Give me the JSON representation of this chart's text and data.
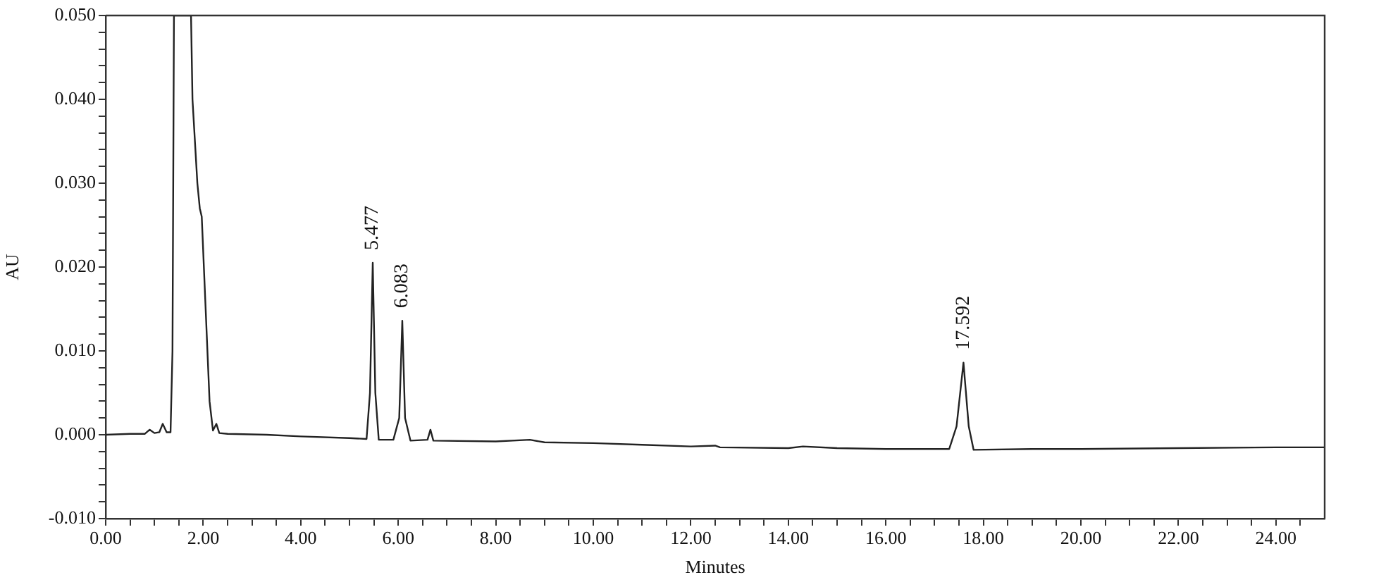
{
  "chart_data": {
    "type": "line",
    "xlabel": "Minutes",
    "ylabel": "AU",
    "xlim": [
      0,
      25
    ],
    "ylim": [
      -0.01,
      0.05
    ],
    "xticks": [
      {
        "value": 0,
        "label": "0.00"
      },
      {
        "value": 0.5,
        "label": null
      },
      {
        "value": 1,
        "label": null
      },
      {
        "value": 1.5,
        "label": null
      },
      {
        "value": 2,
        "label": "2.00"
      },
      {
        "value": 2.5,
        "label": null
      },
      {
        "value": 3,
        "label": null
      },
      {
        "value": 3.5,
        "label": null
      },
      {
        "value": 4,
        "label": "4.00"
      },
      {
        "value": 4.5,
        "label": null
      },
      {
        "value": 5,
        "label": null
      },
      {
        "value": 5.5,
        "label": null
      },
      {
        "value": 6,
        "label": "6.00"
      },
      {
        "value": 6.5,
        "label": null
      },
      {
        "value": 7,
        "label": null
      },
      {
        "value": 7.5,
        "label": null
      },
      {
        "value": 8,
        "label": "8.00"
      },
      {
        "value": 8.5,
        "label": null
      },
      {
        "value": 9,
        "label": null
      },
      {
        "value": 9.5,
        "label": null
      },
      {
        "value": 10,
        "label": "10.00"
      },
      {
        "value": 10.5,
        "label": null
      },
      {
        "value": 11,
        "label": null
      },
      {
        "value": 11.5,
        "label": null
      },
      {
        "value": 12,
        "label": "12.00"
      },
      {
        "value": 12.5,
        "label": null
      },
      {
        "value": 13,
        "label": null
      },
      {
        "value": 13.5,
        "label": null
      },
      {
        "value": 14,
        "label": "14.00"
      },
      {
        "value": 14.5,
        "label": null
      },
      {
        "value": 15,
        "label": null
      },
      {
        "value": 15.5,
        "label": null
      },
      {
        "value": 16,
        "label": "16.00"
      },
      {
        "value": 16.5,
        "label": null
      },
      {
        "value": 17,
        "label": null
      },
      {
        "value": 17.5,
        "label": null
      },
      {
        "value": 18,
        "label": "18.00"
      },
      {
        "value": 18.5,
        "label": null
      },
      {
        "value": 19,
        "label": null
      },
      {
        "value": 19.5,
        "label": null
      },
      {
        "value": 20,
        "label": "20.00"
      },
      {
        "value": 20.5,
        "label": null
      },
      {
        "value": 21,
        "label": null
      },
      {
        "value": 21.5,
        "label": null
      },
      {
        "value": 22,
        "label": "22.00"
      },
      {
        "value": 22.5,
        "label": null
      },
      {
        "value": 23,
        "label": null
      },
      {
        "value": 23.5,
        "label": null
      },
      {
        "value": 24,
        "label": "24.00"
      },
      {
        "value": 24.5,
        "label": null
      }
    ],
    "yticks": [
      {
        "value": -0.01,
        "label": "-0.010"
      },
      {
        "value": -0.008,
        "label": null
      },
      {
        "value": -0.006,
        "label": null
      },
      {
        "value": -0.004,
        "label": null
      },
      {
        "value": -0.002,
        "label": null
      },
      {
        "value": 0,
        "label": "0.000"
      },
      {
        "value": 0.002,
        "label": null
      },
      {
        "value": 0.004,
        "label": null
      },
      {
        "value": 0.006,
        "label": null
      },
      {
        "value": 0.008,
        "label": null
      },
      {
        "value": 0.01,
        "label": "0.010"
      },
      {
        "value": 0.012,
        "label": null
      },
      {
        "value": 0.014,
        "label": null
      },
      {
        "value": 0.016,
        "label": null
      },
      {
        "value": 0.018,
        "label": null
      },
      {
        "value": 0.02,
        "label": "0.020"
      },
      {
        "value": 0.022,
        "label": null
      },
      {
        "value": 0.024,
        "label": null
      },
      {
        "value": 0.026,
        "label": null
      },
      {
        "value": 0.028,
        "label": null
      },
      {
        "value": 0.03,
        "label": "0.030"
      },
      {
        "value": 0.032,
        "label": null
      },
      {
        "value": 0.034,
        "label": null
      },
      {
        "value": 0.036,
        "label": null
      },
      {
        "value": 0.038,
        "label": null
      },
      {
        "value": 0.04,
        "label": "0.040"
      },
      {
        "value": 0.042,
        "label": null
      },
      {
        "value": 0.044,
        "label": null
      },
      {
        "value": 0.046,
        "label": null
      },
      {
        "value": 0.048,
        "label": null
      },
      {
        "value": 0.05,
        "label": "0.050"
      }
    ],
    "grid": false,
    "legend": false,
    "marker": "none",
    "line_style": "solid",
    "series": [
      {
        "color": "#222222",
        "x": [
          0,
          0.5,
          0.8,
          0.9,
          1.0,
          1.1,
          1.17,
          1.25,
          1.33,
          1.37,
          1.4,
          1.75,
          1.78,
          1.88,
          1.93,
          1.97,
          2.05,
          2.13,
          2.2,
          2.27,
          2.33,
          2.5,
          3.3,
          4.0,
          5.0,
          5.35,
          5.42,
          5.477,
          5.53,
          5.6,
          5.9,
          6.02,
          6.083,
          6.14,
          6.25,
          6.6,
          6.66,
          6.72,
          8,
          8.7,
          9,
          10,
          11,
          12,
          12.5,
          12.6,
          14,
          14.3,
          15,
          16,
          17.3,
          17.45,
          17.592,
          17.7,
          17.8,
          19,
          20,
          22,
          24,
          25
        ],
        "values": [
          0,
          0.0001,
          0.0001,
          0.0006,
          0.0002,
          0.0003,
          0.0013,
          0.0003,
          0.0003,
          0.01,
          0.05,
          0.05,
          0.04,
          0.03,
          0.027,
          0.026,
          0.015,
          0.004,
          0.0005,
          0.0013,
          0.0002,
          0.0001,
          0,
          -0.0002,
          -0.0004,
          -0.0005,
          0.005,
          0.0205,
          0.005,
          -0.0006,
          -0.0006,
          0.002,
          0.0136,
          0.002,
          -0.0007,
          -0.0006,
          0.0006,
          -0.0007,
          -0.0008,
          -0.0006,
          -0.0009,
          -0.001,
          -0.0012,
          -0.0014,
          -0.0013,
          -0.0015,
          -0.0016,
          -0.0014,
          -0.0016,
          -0.0017,
          -0.0017,
          0.001,
          0.0086,
          0.001,
          -0.0018,
          -0.0017,
          -0.0017,
          -0.0016,
          -0.0015,
          -0.0015
        ]
      }
    ],
    "annotations": [
      {
        "text": "5.477",
        "x": 5.477,
        "y": 0.0205
      },
      {
        "text": "6.083",
        "x": 6.083,
        "y": 0.0136
      },
      {
        "text": "17.592",
        "x": 17.592,
        "y": 0.0086
      }
    ]
  }
}
